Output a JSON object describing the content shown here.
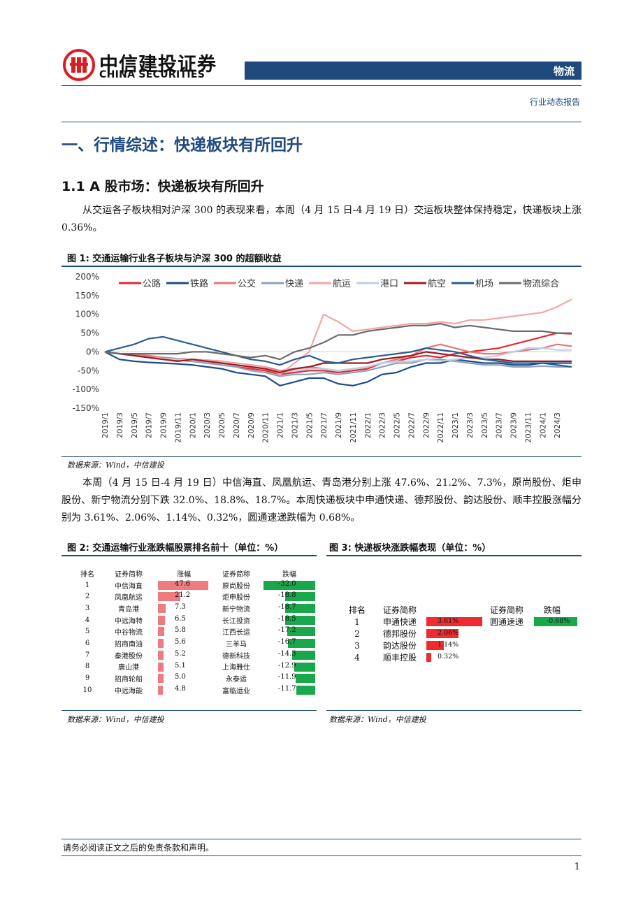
{
  "header": {
    "brand_cn": "中信建投证券",
    "brand_en": "CHINA SECURITIES",
    "sector": "物流",
    "report_type": "行业动态报告"
  },
  "section": {
    "h1": "一、行情综述：快递板块有所回升",
    "h2": "1.1 A 股市场：快递板块有所回升",
    "para1": "从交运各子板块相对沪深 300 的表现来看，本周（4 月 15 日-4 月 19 日）交运板块整体保持稳定，快递板块上涨 0.36%。",
    "para2": "本周（4 月 15 日-4 月 19 日）中信海直、凤凰航运、青岛港分别上涨 47.6%、21.2%、7.3%，原尚股份、炬申股份、新宁物流分别下跌 32.0%、18.8%、18.7%。本周快递板块中申通快递、德邦股份、韵达股份、顺丰控股涨幅分别为 3.61%、2.06%、1.14%、0.32%，圆通速递跌幅为 0.68%。"
  },
  "fig1": {
    "title": "图 1:  交通运输行业各子板块与沪深 300 的超额收益",
    "source": "数据来源：Wind，中信建投"
  },
  "chart_data": {
    "type": "line",
    "x": [
      "2019/1",
      "2019/3",
      "2019/5",
      "2019/7",
      "2019/9",
      "2019/11",
      "2020/1",
      "2020/3",
      "2020/5",
      "2020/7",
      "2020/9",
      "2020/11",
      "2021/1",
      "2021/3",
      "2021/5",
      "2021/7",
      "2021/9",
      "2021/11",
      "2022/1",
      "2022/3",
      "2022/5",
      "2022/7",
      "2022/9",
      "2022/11",
      "2023/1",
      "2023/3",
      "2023/5",
      "2023/7",
      "2023/9",
      "2023/11",
      "2024/1",
      "2024/3",
      "2024/4"
    ],
    "x_tick_labels": [
      "2019/1",
      "2019/3",
      "2019/5",
      "2019/7",
      "2019/9",
      "2019/11",
      "2020/1",
      "2020/3",
      "2020/5",
      "2020/7",
      "2020/9",
      "2020/11",
      "2021/1",
      "2021/3",
      "2021/5",
      "2021/7",
      "2021/9",
      "2021/11",
      "2022/1",
      "2022/3",
      "2022/5",
      "2022/7",
      "2022/9",
      "2022/11",
      "2023/1",
      "2023/3",
      "2023/5",
      "2023/7",
      "2023/9",
      "2023/11",
      "2024/1",
      "2024/3"
    ],
    "y_ticks": [
      "200%",
      "150%",
      "100%",
      "50%",
      "0%",
      "-50%",
      "-100%",
      "-150%"
    ],
    "ylim": [
      -150,
      200
    ],
    "legend_position": "top",
    "series": [
      {
        "name": "公路",
        "color": "#e4292f",
        "values": [
          0,
          -5,
          -10,
          -15,
          -20,
          -22,
          -25,
          -30,
          -35,
          -40,
          -45,
          -50,
          -60,
          -55,
          -50,
          -50,
          -55,
          -50,
          -45,
          -30,
          -25,
          -15,
          -10,
          -15,
          -5,
          0,
          5,
          10,
          20,
          30,
          40,
          50,
          48
        ]
      },
      {
        "name": "铁路",
        "color": "#1d4d86",
        "values": [
          0,
          -20,
          -25,
          -28,
          -30,
          -32,
          -35,
          -40,
          -45,
          -55,
          -60,
          -65,
          -90,
          -80,
          -70,
          -70,
          -85,
          -90,
          -80,
          -60,
          -55,
          -40,
          -30,
          -30,
          -20,
          -25,
          -30,
          -30,
          -35,
          -35,
          -30,
          -30,
          -30
        ]
      },
      {
        "name": "公交",
        "color": "#e87676",
        "values": [
          0,
          -5,
          -8,
          -10,
          -15,
          -18,
          -20,
          -22,
          -25,
          -30,
          -35,
          -40,
          -50,
          -45,
          -40,
          -45,
          -50,
          -45,
          -40,
          -30,
          -20,
          -10,
          10,
          20,
          10,
          0,
          -5,
          -5,
          0,
          5,
          10,
          20,
          15
        ]
      },
      {
        "name": "快递",
        "color": "#8aa1c1",
        "values": [
          0,
          -5,
          -10,
          -15,
          -20,
          -18,
          -25,
          -30,
          -35,
          -40,
          -50,
          -55,
          -65,
          -60,
          -60,
          -55,
          -60,
          -55,
          -50,
          -40,
          -30,
          -30,
          -20,
          -20,
          -25,
          -30,
          -35,
          -35,
          -40,
          -40,
          -38,
          -40,
          -40
        ]
      },
      {
        "name": "航运",
        "color": "#f4a6a6",
        "values": [
          0,
          -5,
          -10,
          -15,
          -18,
          -20,
          -20,
          -22,
          -25,
          -30,
          -35,
          -40,
          -60,
          -30,
          0,
          100,
          80,
          55,
          60,
          65,
          70,
          75,
          75,
          80,
          75,
          85,
          85,
          90,
          95,
          100,
          105,
          120,
          140
        ]
      },
      {
        "name": "港口",
        "color": "#bcd0e6",
        "values": [
          0,
          -5,
          -10,
          -15,
          -18,
          -20,
          -22,
          -25,
          -30,
          -35,
          -40,
          -45,
          -55,
          -50,
          -45,
          -45,
          -50,
          -45,
          -40,
          -30,
          -25,
          -25,
          -20,
          -25,
          -20,
          -15,
          -15,
          -10,
          0,
          10,
          10,
          5,
          5
        ]
      },
      {
        "name": "航空",
        "color": "#a01a1f",
        "values": [
          0,
          -5,
          -10,
          -15,
          -20,
          -25,
          -20,
          -25,
          -30,
          -35,
          -40,
          -45,
          -55,
          -45,
          -40,
          -30,
          -30,
          -30,
          -30,
          -20,
          -15,
          -10,
          0,
          -5,
          -10,
          -15,
          -20,
          -20,
          -25,
          -25,
          -25,
          -25,
          -25
        ]
      },
      {
        "name": "机场",
        "color": "#2a5d8f",
        "values": [
          0,
          10,
          20,
          35,
          40,
          30,
          20,
          10,
          0,
          -10,
          -20,
          -25,
          -35,
          -20,
          -10,
          -25,
          -30,
          -20,
          -15,
          -10,
          -5,
          0,
          10,
          5,
          0,
          -10,
          -20,
          -25,
          -30,
          -30,
          -30,
          -35,
          -40
        ]
      },
      {
        "name": "物流综合",
        "color": "#6b6b6b",
        "values": [
          0,
          -5,
          -5,
          -5,
          -5,
          -5,
          0,
          0,
          -5,
          -10,
          -15,
          -10,
          -20,
          0,
          10,
          25,
          45,
          45,
          55,
          60,
          65,
          70,
          70,
          75,
          65,
          70,
          65,
          60,
          55,
          55,
          55,
          50,
          50
        ]
      }
    ]
  },
  "fig2": {
    "title": "图 2:  交通运输行业涨跌幅股票排名前十（单位：%）",
    "source": "数据来源：Wind，中信建投",
    "headers": [
      "排名",
      "证券简称",
      "涨幅",
      "证券简称",
      "跌幅"
    ],
    "rows": [
      {
        "rank": "1",
        "up_name": "中信海直",
        "up": "47.6",
        "up_val": 47.6,
        "down_name": "原尚股份",
        "down": "-32.0",
        "down_val": 32.0
      },
      {
        "rank": "2",
        "up_name": "凤凰航运",
        "up": "21.2",
        "up_val": 21.2,
        "down_name": "炬申股份",
        "down": "-18.8",
        "down_val": 18.8
      },
      {
        "rank": "3",
        "up_name": "青岛港",
        "up": "7.3",
        "up_val": 7.3,
        "down_name": "新宁物流",
        "down": "-18.7",
        "down_val": 18.7
      },
      {
        "rank": "4",
        "up_name": "中远海特",
        "up": "6.5",
        "up_val": 6.5,
        "down_name": "长江投资",
        "down": "-18.5",
        "down_val": 18.5
      },
      {
        "rank": "5",
        "up_name": "中谷物流",
        "up": "5.8",
        "up_val": 5.8,
        "down_name": "江西长运",
        "down": "-17.2",
        "down_val": 17.2
      },
      {
        "rank": "6",
        "up_name": "招商南油",
        "up": "5.6",
        "up_val": 5.6,
        "down_name": "三羊马",
        "down": "-16.7",
        "down_val": 16.7
      },
      {
        "rank": "7",
        "up_name": "秦港股份",
        "up": "5.2",
        "up_val": 5.2,
        "down_name": "德新科技",
        "down": "-14.3",
        "down_val": 14.3
      },
      {
        "rank": "8",
        "up_name": "唐山港",
        "up": "5.1",
        "up_val": 5.1,
        "down_name": "上海雅仕",
        "down": "-12.9",
        "down_val": 12.9
      },
      {
        "rank": "9",
        "up_name": "招商轮船",
        "up": "5.0",
        "up_val": 5.0,
        "down_name": "永泰运",
        "down": "-11.9",
        "down_val": 11.9
      },
      {
        "rank": "10",
        "up_name": "中远海能",
        "up": "4.8",
        "up_val": 4.8,
        "down_name": "富临运业",
        "down": "-11.7",
        "down_val": 11.7
      }
    ]
  },
  "fig3": {
    "title": "图 3:  快递板块涨跌幅表现（单位：%）",
    "source": "数据来源：Wind，中信建投",
    "headers": [
      "排名",
      "证券简称",
      "",
      "证券简称",
      "跌幅"
    ],
    "rows": [
      {
        "rank": "1",
        "up_name": "申通快递",
        "up": "3.61%",
        "up_val": 3.61,
        "down_name": "圆通速递",
        "down": "-0.68%",
        "down_val": 0.68
      },
      {
        "rank": "2",
        "up_name": "德邦股份",
        "up": "2.06%",
        "up_val": 2.06,
        "down_name": "",
        "down": "",
        "down_val": 0
      },
      {
        "rank": "3",
        "up_name": "韵达股份",
        "up": "1.14%",
        "up_val": 1.14,
        "down_name": "",
        "down": "",
        "down_val": 0
      },
      {
        "rank": "4",
        "up_name": "顺丰控股",
        "up": "0.32%",
        "up_val": 0.32,
        "down_name": "",
        "down": "",
        "down_val": 0
      }
    ]
  },
  "footer": {
    "disclaimer": "请务必阅读正文之后的免责条款和声明。",
    "page": "1"
  }
}
